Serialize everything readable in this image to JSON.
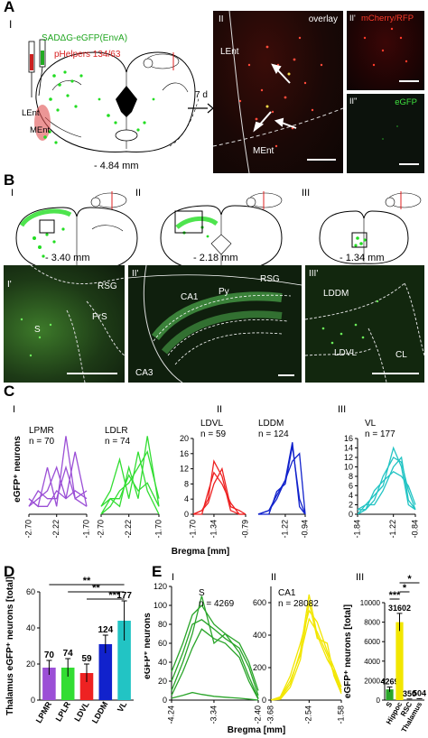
{
  "panelA": {
    "letter": "A",
    "sub_I": "I",
    "virus_label": "SADΔG-eGFP(EnvA)",
    "helpers_label": "pHelpers 134/63",
    "lent_label": "LEnt",
    "ment_label": "MEnt",
    "bregma": "- 4.84 mm",
    "arrow_label": "7 d",
    "image_II": {
      "roman": "II",
      "overlay": "overlay",
      "lent": "LEnt",
      "ment": "MEnt"
    },
    "image_II1": {
      "roman": "II'",
      "label": "mCherry/RFP"
    },
    "image_II2": {
      "roman": "II''",
      "label": "eGFP"
    }
  },
  "panelB": {
    "letter": "B",
    "sections": [
      {
        "roman": "I",
        "bregma": "- 3.40 mm"
      },
      {
        "roman": "II",
        "bregma": "- 2.18 mm"
      },
      {
        "roman": "III",
        "bregma": "- 1.34 mm"
      }
    ],
    "images": [
      {
        "roman": "I'",
        "labels": [
          "RSG",
          "S",
          "PrS"
        ]
      },
      {
        "roman": "II'",
        "labels": [
          "RSG",
          "CA1",
          "Py",
          "CA3"
        ]
      },
      {
        "roman": "III'",
        "labels": [
          "LDDM",
          "LDVL",
          "CL"
        ]
      }
    ]
  },
  "panelC": {
    "letter": "C",
    "ylabel": "eGFP⁺ neurons",
    "xlabel": "Bregma [mm]",
    "sub_I": "I",
    "sub_II": "II",
    "sub_III": "III"
  },
  "panelD": {
    "letter": "D",
    "ylabel": "Thalamus eGFP⁺ neurons [total]",
    "sig1": "**",
    "sig2": "**",
    "sig3": "***"
  },
  "panelE": {
    "letter": "E",
    "sub_I": "I",
    "sub_II": "II",
    "sub_III": "III",
    "ylabel": "eGFP⁺ neurons",
    "xlabel": "Bregma [mm]",
    "ylabel_III": "eGFP⁺ neurons [total]",
    "sig1": "*",
    "sig2": "*",
    "sig3": "***"
  },
  "chart_data": [
    {
      "id": "C-I-LPMR",
      "type": "line",
      "title": "LPMR",
      "subtitle": "n = 70",
      "x_ticks": [
        "-2.70",
        "-2.22",
        "-1.70"
      ],
      "ylim": [
        0,
        12
      ],
      "color": "#9b4fd6",
      "series": [
        {
          "x": [
            -2.7,
            -2.54,
            -2.38,
            -2.22,
            -2.06,
            -1.9,
            -1.7
          ],
          "y": [
            2,
            1,
            6,
            1,
            10,
            2,
            1
          ]
        },
        {
          "x": [
            -2.7,
            -2.54,
            -2.38,
            -2.22,
            -2.06,
            -1.9,
            -1.7
          ],
          "y": [
            1,
            2,
            3,
            6,
            2,
            8,
            1
          ]
        },
        {
          "x": [
            -2.7,
            -2.54,
            -2.38,
            -2.22,
            -2.06,
            -1.9,
            -1.7
          ],
          "y": [
            2,
            1,
            1,
            3,
            2,
            3,
            2
          ]
        },
        {
          "x": [
            -2.7,
            -2.54,
            -2.38,
            -2.22,
            -2.06,
            -1.9,
            -1.7
          ],
          "y": [
            1,
            3,
            2,
            2,
            6,
            2,
            3
          ]
        }
      ]
    },
    {
      "id": "C-I-LDLR",
      "type": "line",
      "title": "LDLR",
      "subtitle": "n = 74",
      "x_ticks": [
        "-2.70",
        "-2.22",
        "-1.70"
      ],
      "ylim": [
        0,
        12
      ],
      "color": "#33dd33",
      "series": [
        {
          "x": [
            -2.7,
            -2.54,
            -2.38,
            -2.22,
            -2.06,
            -1.9,
            -1.7
          ],
          "y": [
            0,
            2,
            1,
            6,
            2,
            10,
            1
          ]
        },
        {
          "x": [
            -2.7,
            -2.54,
            -2.38,
            -2.22,
            -2.06,
            -1.9,
            -1.7
          ],
          "y": [
            1,
            3,
            7,
            2,
            8,
            3,
            0
          ]
        },
        {
          "x": [
            -2.7,
            -2.54,
            -2.38,
            -2.22,
            -2.06,
            -1.9,
            -1.7
          ],
          "y": [
            0,
            1,
            3,
            4,
            6,
            8,
            2
          ]
        },
        {
          "x": [
            -2.7,
            -2.54,
            -2.38,
            -2.22,
            -2.06,
            -1.9,
            -1.7
          ],
          "y": [
            1,
            2,
            2,
            5,
            3,
            4,
            1
          ]
        }
      ]
    },
    {
      "id": "C-II-LDVL",
      "type": "line",
      "title": "LDVL",
      "subtitle": "n = 59",
      "x_ticks": [
        "-1.70",
        "-1.34",
        "-0.79"
      ],
      "ylim": [
        0,
        20
      ],
      "y_ticks": [
        "0",
        "4",
        "8",
        "12",
        "16",
        "20"
      ],
      "color": "#ee2222",
      "series": [
        {
          "x": [
            -1.7,
            -1.55,
            -1.44,
            -1.34,
            -1.2,
            -1.05,
            -0.9,
            -0.79
          ],
          "y": [
            0,
            1,
            4,
            14,
            10,
            1,
            0,
            0
          ]
        },
        {
          "x": [
            -1.7,
            -1.55,
            -1.44,
            -1.34,
            -1.2,
            -1.05,
            -0.9,
            -0.79
          ],
          "y": [
            0,
            0,
            6,
            11,
            8,
            3,
            0,
            0
          ]
        },
        {
          "x": [
            -1.7,
            -1.55,
            -1.44,
            -1.34,
            -1.2,
            -1.05,
            -0.9,
            -0.79
          ],
          "y": [
            0,
            1,
            3,
            8,
            12,
            2,
            1,
            0
          ]
        }
      ]
    },
    {
      "id": "C-II-LDDM",
      "type": "line",
      "title": "LDDM",
      "subtitle": "n = 124",
      "x_ticks": [
        "-1.22",
        "-0.94"
      ],
      "ylim": [
        0,
        20
      ],
      "color": "#1122cc",
      "series": [
        {
          "x": [
            -1.6,
            -1.45,
            -1.34,
            -1.22,
            -1.12,
            -1.02,
            -0.94
          ],
          "y": [
            0,
            1,
            5,
            9,
            19,
            2,
            0
          ]
        },
        {
          "x": [
            -1.6,
            -1.45,
            -1.34,
            -1.22,
            -1.12,
            -1.02,
            -0.94
          ],
          "y": [
            0,
            0,
            6,
            8,
            18,
            4,
            0
          ]
        },
        {
          "x": [
            -1.6,
            -1.45,
            -1.34,
            -1.22,
            -1.12,
            -1.02,
            -0.94
          ],
          "y": [
            0,
            1,
            4,
            9,
            14,
            16,
            0
          ]
        }
      ]
    },
    {
      "id": "C-III-VL",
      "type": "line",
      "title": "VL",
      "subtitle": "n = 177",
      "x_ticks": [
        "-1.84",
        "-1.22",
        "-0.84"
      ],
      "ylim": [
        0,
        16
      ],
      "y_ticks": [
        "0",
        "2",
        "4",
        "6",
        "8",
        "10",
        "12",
        "14",
        "16"
      ],
      "color": "#22c4c4",
      "series": [
        {
          "x": [
            -1.84,
            -1.7,
            -1.55,
            -1.4,
            -1.22,
            -1.08,
            -0.96,
            -0.84
          ],
          "y": [
            1,
            2,
            4,
            6,
            14,
            10,
            2,
            1
          ]
        },
        {
          "x": [
            -1.84,
            -1.7,
            -1.55,
            -1.4,
            -1.22,
            -1.08,
            -0.96,
            -0.84
          ],
          "y": [
            0,
            1,
            3,
            8,
            12,
            11,
            5,
            1
          ]
        },
        {
          "x": [
            -1.84,
            -1.7,
            -1.55,
            -1.4,
            -1.22,
            -1.08,
            -0.96,
            -0.84
          ],
          "y": [
            0,
            2,
            2,
            5,
            10,
            12,
            3,
            1
          ]
        },
        {
          "x": [
            -1.84,
            -1.7,
            -1.55,
            -1.4,
            -1.22,
            -1.08,
            -0.96,
            -0.84
          ],
          "y": [
            1,
            1,
            5,
            7,
            9,
            8,
            6,
            2
          ]
        }
      ]
    },
    {
      "id": "D",
      "type": "bar",
      "categories": [
        "LPMR",
        "LPLR",
        "LDVL",
        "LDDM",
        "VL"
      ],
      "values": [
        18,
        18,
        15,
        31,
        44
      ],
      "errors": [
        4,
        5,
        5,
        5,
        11
      ],
      "labels": [
        "70",
        "74",
        "59",
        "124",
        "177"
      ],
      "colors": [
        "#9b4fd6",
        "#33dd33",
        "#ee2222",
        "#1122cc",
        "#22c4c4"
      ],
      "ylim": [
        0,
        60
      ],
      "y_ticks": [
        "0",
        "20",
        "40",
        "60"
      ]
    },
    {
      "id": "E-I",
      "type": "line",
      "title": "S",
      "subtitle": "n = 4269",
      "x_ticks": [
        "-4.24",
        "-3.34",
        "-2.40"
      ],
      "ylim": [
        0,
        120
      ],
      "y_ticks": [
        "0",
        "20",
        "40",
        "60",
        "80",
        "100",
        "120"
      ],
      "color": "#2aa52a",
      "series": [
        {
          "x": [
            -4.24,
            -4.0,
            -3.8,
            -3.6,
            -3.34,
            -3.1,
            -2.8,
            -2.6,
            -2.4
          ],
          "y": [
            30,
            60,
            90,
            100,
            80,
            70,
            60,
            40,
            10
          ]
        },
        {
          "x": [
            -4.24,
            -4.0,
            -3.8,
            -3.6,
            -3.34,
            -3.1,
            -2.8,
            -2.6,
            -2.4
          ],
          "y": [
            20,
            50,
            80,
            85,
            75,
            65,
            55,
            35,
            5
          ]
        },
        {
          "x": [
            -4.24,
            -4.0,
            -3.8,
            -3.6,
            -3.34,
            -3.1,
            -2.8,
            -2.6,
            -2.4
          ],
          "y": [
            10,
            40,
            70,
            110,
            60,
            70,
            50,
            25,
            2
          ]
        },
        {
          "x": [
            -4.24,
            -4.0,
            -3.8,
            -3.6,
            -3.34,
            -3.1,
            -2.8,
            -2.6,
            -2.4
          ],
          "y": [
            5,
            30,
            55,
            75,
            65,
            60,
            45,
            20,
            1
          ]
        },
        {
          "x": [
            -4.24,
            -4.0,
            -3.8,
            -3.6,
            -3.34,
            -3.1,
            -2.8,
            -2.6,
            -2.4
          ],
          "y": [
            2,
            5,
            8,
            6,
            4,
            3,
            2,
            1,
            0
          ]
        }
      ]
    },
    {
      "id": "E-II",
      "type": "line",
      "title": "CA1",
      "subtitle": "n = 28082",
      "x_ticks": [
        "-3.68",
        "-2.54",
        "-1.58"
      ],
      "ylim": [
        0,
        700
      ],
      "y_ticks": [
        "0",
        "200",
        "400",
        "600"
      ],
      "color": "#f2e600",
      "series": [
        {
          "x": [
            -3.68,
            -3.4,
            -3.1,
            -2.8,
            -2.54,
            -2.3,
            -2.0,
            -1.8,
            -1.58
          ],
          "y": [
            0,
            10,
            100,
            300,
            650,
            400,
            250,
            180,
            60
          ]
        },
        {
          "x": [
            -3.68,
            -3.4,
            -3.1,
            -2.8,
            -2.54,
            -2.3,
            -2.0,
            -1.8,
            -1.58
          ],
          "y": [
            0,
            20,
            150,
            350,
            550,
            480,
            300,
            200,
            80
          ]
        },
        {
          "x": [
            -3.68,
            -3.4,
            -3.1,
            -2.8,
            -2.54,
            -2.3,
            -2.0,
            -1.8,
            -1.58
          ],
          "y": [
            0,
            5,
            80,
            250,
            600,
            380,
            350,
            150,
            40
          ]
        },
        {
          "x": [
            -3.68,
            -3.4,
            -3.1,
            -2.8,
            -2.54,
            -2.3,
            -2.0,
            -1.8,
            -1.58
          ],
          "y": [
            0,
            15,
            120,
            280,
            500,
            420,
            280,
            160,
            50
          ]
        }
      ]
    },
    {
      "id": "E-III",
      "type": "bar",
      "categories": [
        "S",
        "Hippoc",
        "RSC",
        "Thalamus"
      ],
      "values": [
        1100,
        8000,
        90,
        120
      ],
      "errors": [
        250,
        900,
        20,
        30
      ],
      "labels": [
        "4269",
        "31602",
        "350",
        "504"
      ],
      "colors": [
        "#2aa52a",
        "#f2e600",
        "#888888",
        "#888888"
      ],
      "ylim": [
        0,
        10000
      ],
      "y_ticks": [
        "0",
        "2000",
        "4000",
        "6000",
        "8000",
        "10000"
      ]
    }
  ]
}
